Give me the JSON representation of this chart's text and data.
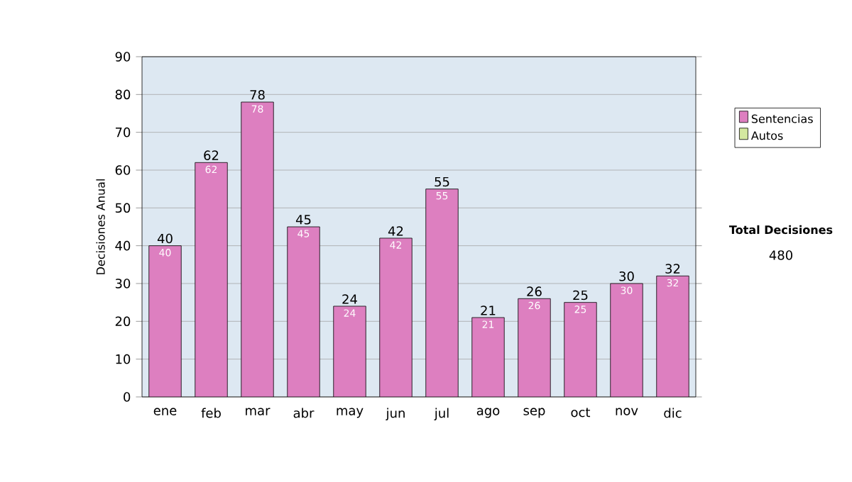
{
  "chart_data": {
    "type": "bar",
    "stacked": true,
    "ylabel": "Decisiones Anual",
    "categories": [
      "ene",
      "feb",
      "mar",
      "abr",
      "may",
      "jun",
      "jul",
      "ago",
      "sep",
      "oct",
      "nov",
      "dic"
    ],
    "series": [
      {
        "name": "Sentencias",
        "color": "#dd7fc0",
        "values": [
          40,
          62,
          78,
          45,
          24,
          42,
          55,
          21,
          26,
          25,
          30,
          32
        ],
        "value_labels": [
          "40",
          "62",
          "78",
          "45",
          "24",
          "42",
          "55",
          "21",
          "26",
          "25",
          "30",
          "32"
        ]
      },
      {
        "name": "Autos",
        "color": "#d4e8a0",
        "values": [
          0,
          0,
          0,
          0,
          0,
          0,
          0,
          0,
          0,
          0,
          0,
          0
        ]
      }
    ],
    "totals": [
      "40",
      "62",
      "78",
      "45",
      "24",
      "42",
      "55",
      "21",
      "26",
      "25",
      "30",
      "32"
    ],
    "ylim": [
      0,
      90
    ],
    "yticks": [
      0,
      10,
      20,
      30,
      40,
      50,
      60,
      70,
      80,
      90
    ],
    "grid": "y",
    "legend": "right",
    "annotations": [
      "Total Decisiones",
      "480"
    ]
  }
}
